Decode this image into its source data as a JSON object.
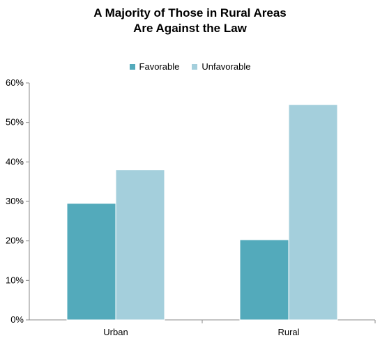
{
  "chart_data": {
    "type": "bar",
    "title": [
      "A Majority of Those in Rural Areas",
      "Are Against the Law"
    ],
    "categories": [
      "Urban",
      "Rural"
    ],
    "series": [
      {
        "name": "Favorable",
        "values": [
          29.5,
          20.3
        ],
        "color": "#53aabb"
      },
      {
        "name": "Unfavorable",
        "values": [
          38.0,
          54.5
        ],
        "color": "#a4cfdc"
      }
    ],
    "ylim": [
      0,
      60
    ],
    "yticks": [
      "0%",
      "10%",
      "20%",
      "30%",
      "40%",
      "50%",
      "60%"
    ],
    "grid": false,
    "legend_position": "top-center"
  }
}
